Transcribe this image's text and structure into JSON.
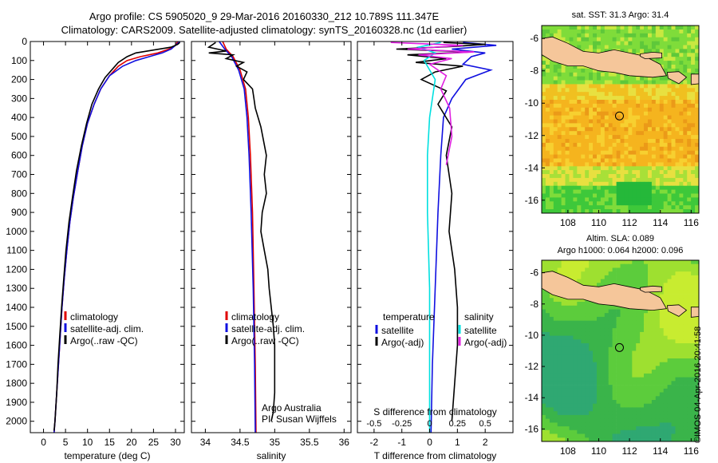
{
  "header": {
    "line1": "Argo profile: CS 5905020_9 29-Mar-2016 20160330_212 10.789S 111.347E",
    "line2": "Climatology: CARS2009. Satellite-adjusted climatology: synTS_20160328.nc (1d earlier)"
  },
  "colors": {
    "climatology": "#e00000",
    "satellite": "#1010e0",
    "argo": "#000000",
    "sat_sal": "#00e0e0",
    "argo_sal_diff": "#e020e0"
  },
  "chart_data": [
    {
      "type": "line",
      "id": "temperature",
      "xlabel": "temperature (deg C)",
      "xlim": [
        -3,
        32
      ],
      "xticks": [
        0,
        5,
        10,
        15,
        20,
        25,
        30
      ],
      "ylim": [
        2060,
        0
      ],
      "yticks": [
        0,
        100,
        200,
        300,
        400,
        500,
        600,
        700,
        800,
        900,
        1000,
        1100,
        1200,
        1300,
        1400,
        1500,
        1600,
        1700,
        1800,
        1900,
        2000
      ],
      "legend": [
        "climatology",
        "satellite-adj. clim.",
        "Argo(..raw -QC)"
      ],
      "series": [
        {
          "name": "climatology",
          "color_key": "climatology",
          "points": [
            [
              30.5,
              0
            ],
            [
              30,
              20
            ],
            [
              28.5,
              40
            ],
            [
              26,
              60
            ],
            [
              22,
              80
            ],
            [
              19,
              100
            ],
            [
              17,
              130
            ],
            [
              15,
              180
            ],
            [
              13,
              250
            ],
            [
              11.5,
              330
            ],
            [
              10,
              430
            ],
            [
              8.8,
              550
            ],
            [
              7.8,
              680
            ],
            [
              6.8,
              820
            ],
            [
              6,
              950
            ],
            [
              5.3,
              1100
            ],
            [
              4.7,
              1250
            ],
            [
              4.2,
              1400
            ],
            [
              3.8,
              1550
            ],
            [
              3.4,
              1700
            ],
            [
              3,
              1850
            ],
            [
              2.6,
              2000
            ],
            [
              2.4,
              2060
            ]
          ]
        },
        {
          "name": "satellite-adj. clim.",
          "color_key": "satellite",
          "points": [
            [
              31,
              0
            ],
            [
              30,
              20
            ],
            [
              29,
              40
            ],
            [
              27,
              60
            ],
            [
              24,
              80
            ],
            [
              21,
              100
            ],
            [
              18,
              130
            ],
            [
              15,
              180
            ],
            [
              13,
              250
            ],
            [
              11.5,
              330
            ],
            [
              10,
              430
            ],
            [
              8.8,
              550
            ],
            [
              7.8,
              680
            ],
            [
              6.8,
              820
            ],
            [
              6,
              950
            ],
            [
              5.3,
              1100
            ],
            [
              4.7,
              1250
            ],
            [
              4.2,
              1400
            ],
            [
              3.8,
              1550
            ],
            [
              3.4,
              1700
            ],
            [
              3,
              1850
            ],
            [
              2.6,
              2000
            ],
            [
              2.4,
              2060
            ]
          ]
        },
        {
          "name": "Argo(..raw -QC)",
          "color_key": "argo",
          "points": [
            [
              31,
              5
            ],
            [
              30.5,
              15
            ],
            [
              29,
              30
            ],
            [
              25,
              45
            ],
            [
              21,
              60
            ],
            [
              19,
              80
            ],
            [
              17,
              110
            ],
            [
              15.5,
              150
            ],
            [
              14,
              190
            ],
            [
              12.5,
              250
            ],
            [
              11,
              330
            ],
            [
              9.8,
              430
            ],
            [
              8.6,
              550
            ],
            [
              7.5,
              680
            ],
            [
              6.6,
              820
            ],
            [
              5.8,
              950
            ],
            [
              5.1,
              1100
            ],
            [
              4.6,
              1250
            ],
            [
              4.1,
              1400
            ],
            [
              3.7,
              1550
            ],
            [
              3.3,
              1700
            ],
            [
              3,
              1850
            ],
            [
              2.6,
              2000
            ],
            [
              2.4,
              2050
            ]
          ]
        }
      ]
    },
    {
      "type": "line",
      "id": "salinity",
      "xlabel": "salinity",
      "xlim": [
        33.8,
        36.1
      ],
      "xticks": [
        34,
        34.5,
        35,
        35.5,
        36
      ],
      "ylim": [
        2060,
        0
      ],
      "legend": [
        "climatology",
        "satellite-adj. clim.",
        "Argo(..raw -QC)"
      ],
      "annotation": [
        "Argo Australia",
        "PI: Susan Wijffels"
      ],
      "series": [
        {
          "name": "climatology",
          "color_key": "climatology",
          "points": [
            [
              34.25,
              0
            ],
            [
              34.3,
              40
            ],
            [
              34.4,
              80
            ],
            [
              34.5,
              150
            ],
            [
              34.58,
              250
            ],
            [
              34.62,
              400
            ],
            [
              34.65,
              600
            ],
            [
              34.68,
              900
            ],
            [
              34.7,
              1300
            ],
            [
              34.72,
              1700
            ],
            [
              34.73,
              2060
            ]
          ]
        },
        {
          "name": "satellite-adj. clim.",
          "color_key": "satellite",
          "points": [
            [
              34.2,
              0
            ],
            [
              34.28,
              40
            ],
            [
              34.38,
              80
            ],
            [
              34.48,
              150
            ],
            [
              34.56,
              250
            ],
            [
              34.6,
              400
            ],
            [
              34.63,
              600
            ],
            [
              34.66,
              900
            ],
            [
              34.69,
              1300
            ],
            [
              34.71,
              1700
            ],
            [
              34.72,
              2060
            ]
          ]
        },
        {
          "name": "Argo(..raw -QC)",
          "color_key": "argo",
          "points": [
            [
              34.15,
              5
            ],
            [
              34.05,
              30
            ],
            [
              34.3,
              50
            ],
            [
              34.05,
              60
            ],
            [
              34.4,
              70
            ],
            [
              34.3,
              90
            ],
            [
              34.55,
              110
            ],
            [
              34.45,
              130
            ],
            [
              34.6,
              160
            ],
            [
              34.55,
              200
            ],
            [
              34.68,
              250
            ],
            [
              34.7,
              300
            ],
            [
              34.72,
              350
            ],
            [
              34.8,
              450
            ],
            [
              34.88,
              600
            ],
            [
              34.85,
              700
            ],
            [
              34.88,
              800
            ],
            [
              34.82,
              900
            ],
            [
              34.8,
              1000
            ],
            [
              34.85,
              1100
            ],
            [
              34.9,
              1200
            ],
            [
              34.92,
              1300
            ],
            [
              34.95,
              1400
            ],
            [
              34.98,
              1500
            ],
            [
              35,
              1600
            ],
            [
              35,
              1700
            ],
            [
              35,
              1850
            ],
            [
              34.98,
              1950
            ],
            [
              34.95,
              2000
            ]
          ]
        }
      ]
    },
    {
      "type": "line",
      "id": "difference",
      "xlabel": "T difference from climatology",
      "xlabel2": "S difference from climatology",
      "xlim": [
        -2.6,
        3.0
      ],
      "xticks": [
        -2,
        -1,
        0,
        1,
        2
      ],
      "sticks": [
        -0.5,
        -0.25,
        0,
        0.25,
        0.5
      ],
      "s_scale": 4,
      "ylim": [
        2060,
        0
      ],
      "legend_headers": [
        "temperature",
        "salinity"
      ],
      "legend_left": [
        "satellite",
        "Argo(-adj)"
      ],
      "legend_right": [
        "satellite",
        "Argo(-adj)"
      ],
      "series": [
        {
          "name": "T satellite",
          "color_key": "satellite",
          "points": [
            [
              1.2,
              5
            ],
            [
              2.4,
              20
            ],
            [
              0.8,
              40
            ],
            [
              2,
              60
            ],
            [
              1.5,
              80
            ],
            [
              1.2,
              120
            ],
            [
              2.2,
              150
            ],
            [
              1.3,
              200
            ],
            [
              0.8,
              300
            ],
            [
              0.5,
              400
            ],
            [
              0.4,
              600
            ],
            [
              0.3,
              900
            ],
            [
              0.2,
              1300
            ],
            [
              0.1,
              1700
            ],
            [
              0.05,
              2060
            ]
          ]
        },
        {
          "name": "T Argo(-adj)",
          "color_key": "argo",
          "points": [
            [
              0.5,
              5
            ],
            [
              2,
              15
            ],
            [
              1,
              25
            ],
            [
              -1.2,
              40
            ],
            [
              1.5,
              55
            ],
            [
              -0.8,
              70
            ],
            [
              0.6,
              90
            ],
            [
              -0.5,
              110
            ],
            [
              1.2,
              130
            ],
            [
              0.2,
              160
            ],
            [
              -0.3,
              200
            ],
            [
              0.6,
              260
            ],
            [
              0.3,
              330
            ],
            [
              0.8,
              450
            ],
            [
              0.6,
              600
            ],
            [
              0.8,
              800
            ],
            [
              0.7,
              1000
            ],
            [
              0.9,
              1200
            ],
            [
              1,
              1400
            ],
            [
              1,
              1600
            ],
            [
              0.9,
              1800
            ],
            [
              0.8,
              2000
            ]
          ]
        },
        {
          "name": "S satellite",
          "color_key": "sat_sal",
          "points": [
            [
              0.1,
              5
            ],
            [
              -0.1,
              30
            ],
            [
              0.05,
              60
            ],
            [
              -0.05,
              100
            ],
            [
              0.05,
              200
            ],
            [
              0,
              400
            ],
            [
              -0.02,
              600
            ],
            [
              -0.02,
              900
            ],
            [
              0,
              1300
            ],
            [
              0,
              1700
            ],
            [
              0,
              2060
            ]
          ]
        },
        {
          "name": "S Argo(-adj)",
          "color_key": "argo_sal_diff",
          "points": [
            [
              -0.35,
              5
            ],
            [
              0.3,
              20
            ],
            [
              -0.2,
              40
            ],
            [
              0.4,
              55
            ],
            [
              -0.1,
              70
            ],
            [
              0.2,
              90
            ],
            [
              0,
              120
            ],
            [
              0.15,
              180
            ],
            [
              0.1,
              250
            ],
            [
              0.18,
              350
            ],
            [
              0.2,
              500
            ],
            [
              0.15,
              650
            ]
          ]
        }
      ]
    },
    {
      "type": "heatmap",
      "id": "sst-map",
      "title": "sat. SST: 31.3 Argo: 31.4",
      "xticks": [
        108,
        110,
        112,
        114,
        116
      ],
      "yticks": [
        -6,
        -8,
        -10,
        -12,
        -14,
        -16
      ],
      "xlim": [
        106.3,
        116.5
      ],
      "ylim": [
        -16.8,
        -5.2
      ],
      "marker": [
        111.347,
        -10.789
      ]
    },
    {
      "type": "heatmap",
      "id": "sla-map",
      "title": "Altim. SLA: 0.089",
      "title2": "Argo h1000: 0.064 h2000: 0.096",
      "xticks": [
        108,
        110,
        112,
        114,
        116
      ],
      "yticks": [
        -6,
        -8,
        -10,
        -12,
        -14,
        -16
      ],
      "xlim": [
        106.3,
        116.5
      ],
      "ylim": [
        -16.8,
        -5.2
      ],
      "marker": [
        111.347,
        -10.789
      ]
    }
  ],
  "stamp": "©IMOS 04-Apr-2016 20:41:58"
}
